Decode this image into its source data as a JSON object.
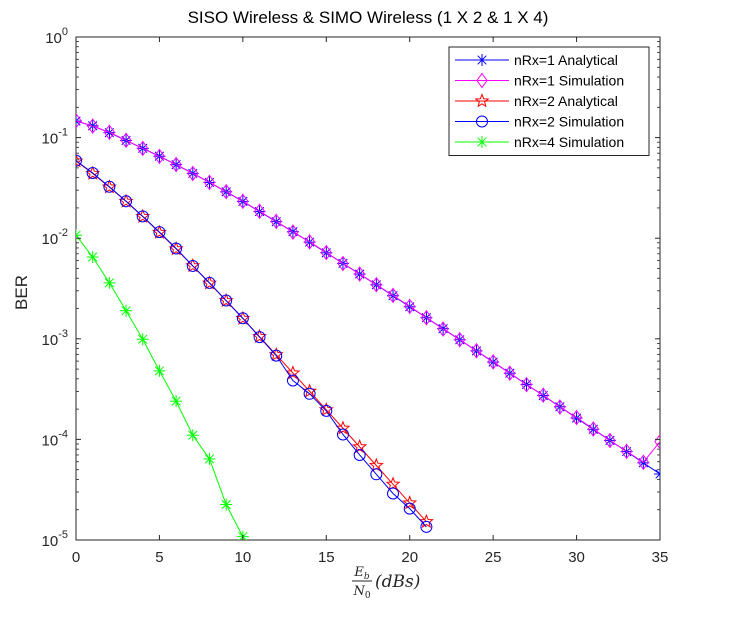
{
  "chart_data": {
    "type": "line",
    "title": "SISO Wireless & SIMO Wireless (1 X 2 & 1 X 4)",
    "xlabel": {
      "frac_num": "E",
      "frac_num_sub": "b",
      "frac_den": "N",
      "frac_den_sub": "0",
      "suffix": "(dBs)"
    },
    "ylabel": "BER",
    "xlim": [
      0,
      35
    ],
    "ylim": [
      1e-05,
      1
    ],
    "yscale": "log",
    "grid": false,
    "legend_position": "top-right",
    "x_ticks": [
      0,
      5,
      10,
      15,
      20,
      25,
      30,
      35
    ],
    "y_ticks": [
      {
        "base": "10",
        "exp": "0",
        "value": 1
      },
      {
        "base": "10",
        "exp": "-1",
        "value": 0.1
      },
      {
        "base": "10",
        "exp": "-2",
        "value": 0.01
      },
      {
        "base": "10",
        "exp": "-3",
        "value": 0.001
      },
      {
        "base": "10",
        "exp": "-4",
        "value": 0.0001
      },
      {
        "base": "10",
        "exp": "-5",
        "value": 1e-05
      }
    ],
    "series": [
      {
        "name": "nRx=1 Analytical",
        "color": "#0000ff",
        "marker": "asterisk",
        "x": [
          0,
          1,
          2,
          3,
          4,
          5,
          6,
          7,
          8,
          9,
          10,
          11,
          12,
          13,
          14,
          15,
          16,
          17,
          18,
          19,
          20,
          21,
          22,
          23,
          24,
          25,
          26,
          27,
          28,
          29,
          30,
          31,
          32,
          33,
          34,
          35
        ],
        "y": [
          0.146,
          0.131,
          0.112,
          0.0937,
          0.0782,
          0.0653,
          0.0538,
          0.0441,
          0.0358,
          0.0289,
          0.0232,
          0.0184,
          0.0146,
          0.0116,
          0.00914,
          0.00716,
          0.00562,
          0.0044,
          0.00344,
          0.00268,
          0.00208,
          0.00162,
          0.00126,
          0.000978,
          0.000758,
          0.000587,
          0.000455,
          0.000352,
          0.000273,
          0.000211,
          0.000163,
          0.000126,
          9.77e-05,
          7.56e-05,
          5.85e-05,
          4.53e-05
        ]
      },
      {
        "name": "nRx=1 Simulation",
        "color": "#ff00ff",
        "marker": "diamond",
        "x": [
          0,
          1,
          2,
          3,
          4,
          5,
          6,
          7,
          8,
          9,
          10,
          11,
          12,
          13,
          14,
          15,
          16,
          17,
          18,
          19,
          20,
          21,
          22,
          23,
          24,
          25,
          26,
          27,
          28,
          29,
          30,
          31,
          32,
          33,
          34,
          35
        ],
        "y": [
          0.147,
          0.13,
          0.113,
          0.094,
          0.078,
          0.065,
          0.054,
          0.044,
          0.0359,
          0.029,
          0.0233,
          0.0185,
          0.0147,
          0.0115,
          0.0092,
          0.0072,
          0.0056,
          0.0044,
          0.00345,
          0.0027,
          0.0021,
          0.00162,
          0.00125,
          0.00098,
          0.00076,
          0.00059,
          0.000455,
          0.00035,
          0.000275,
          0.00021,
          0.000165,
          0.000127,
          9.75e-05,
          7.6e-05,
          5.92e-05,
          9.5e-05
        ]
      },
      {
        "name": "nRx=2 Analytical",
        "color": "#ff0000",
        "marker": "star",
        "x": [
          0,
          1,
          2,
          3,
          4,
          5,
          6,
          7,
          8,
          9,
          10,
          11,
          12,
          13,
          14,
          15,
          16,
          17,
          18,
          19,
          20,
          21
        ],
        "y": [
          0.0585,
          0.044,
          0.0322,
          0.0232,
          0.0164,
          0.0114,
          0.00782,
          0.00531,
          0.00357,
          0.00239,
          0.00159,
          0.00105,
          0.000693,
          0.000457,
          0.000301,
          0.000197,
          0.000129,
          8.43e-05,
          5.5e-05,
          3.58e-05,
          2.33e-05,
          1.52e-05
        ]
      },
      {
        "name": "nRx=2 Simulation",
        "color": "#0000ff",
        "marker": "circle",
        "x": [
          0,
          1,
          2,
          3,
          4,
          5,
          6,
          7,
          8,
          9,
          10,
          11,
          12,
          13,
          14,
          15,
          16,
          17,
          18,
          19,
          20,
          21
        ],
        "y": [
          0.059,
          0.0445,
          0.0325,
          0.0233,
          0.0165,
          0.0115,
          0.0079,
          0.0053,
          0.0036,
          0.0024,
          0.0016,
          0.00104,
          0.00068,
          0.000385,
          0.000284,
          0.000192,
          0.000112,
          7e-05,
          4.5e-05,
          2.9e-05,
          2.05e-05,
          1.35e-05
        ]
      },
      {
        "name": "nRx=4 Simulation",
        "color": "#00ff00",
        "marker": "asterisk",
        "x": [
          0,
          1,
          2,
          3,
          4,
          5,
          6,
          7,
          8,
          9,
          10
        ],
        "y": [
          0.0107,
          0.0065,
          0.0036,
          0.0019,
          0.00099,
          0.00048,
          0.00024,
          0.00011,
          6.4e-05,
          2.25e-05,
          1.08e-05
        ]
      }
    ]
  }
}
